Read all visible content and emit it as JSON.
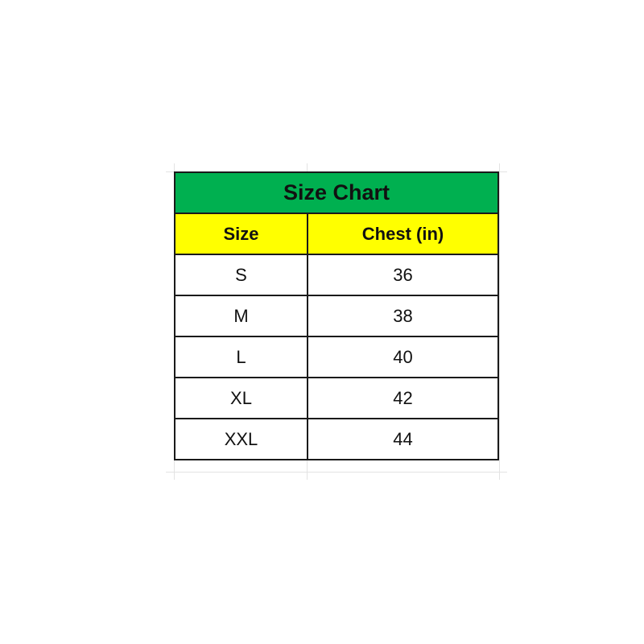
{
  "title": "Size Chart",
  "headers": [
    "Size",
    "Chest (in)"
  ],
  "rows": [
    [
      "S",
      "36"
    ],
    [
      "M",
      "38"
    ],
    [
      "L",
      "40"
    ],
    [
      "XL",
      "42"
    ],
    [
      "XXL",
      "44"
    ]
  ],
  "colors": {
    "title_bg": "#00B050",
    "header_bg": "#FFFF00"
  }
}
